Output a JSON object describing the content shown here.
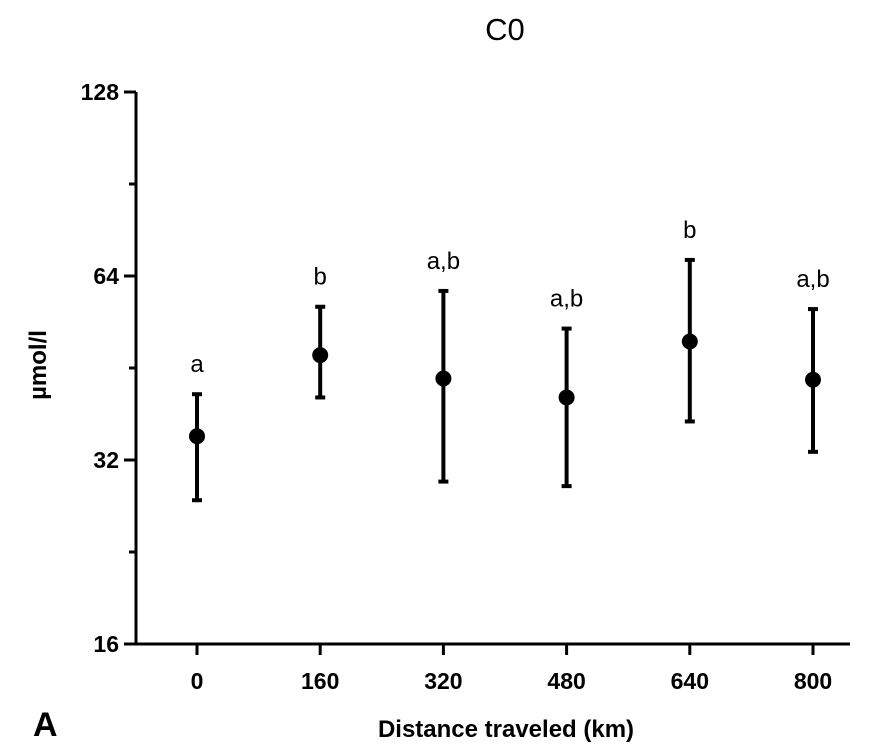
{
  "chart_data": {
    "type": "scatter",
    "title": "C0",
    "panel_label": "A",
    "xlabel": "Distance traveled (km)",
    "ylabel": "µmol/l",
    "y_scale": "log2",
    "ylim": [
      16,
      128
    ],
    "y_ticks": [
      16,
      32,
      64,
      128
    ],
    "y_tick_labels": [
      "16",
      "32",
      "64",
      "128"
    ],
    "categories": [
      "0",
      "160",
      "320",
      "480",
      "640",
      "800"
    ],
    "series": [
      {
        "values": [
          35,
          47.5,
          43.5,
          40.5,
          50,
          43.3
        ],
        "error_low": [
          27.5,
          40.5,
          29.5,
          29,
          37,
          33
        ],
        "error_high": [
          41,
          57,
          60.5,
          52.5,
          68,
          56.5
        ],
        "significance": [
          "a",
          "b",
          "a,b",
          "a,b",
          "b",
          "a,b"
        ]
      }
    ],
    "grid": false,
    "legend": "none",
    "marker_color": "#000000"
  }
}
